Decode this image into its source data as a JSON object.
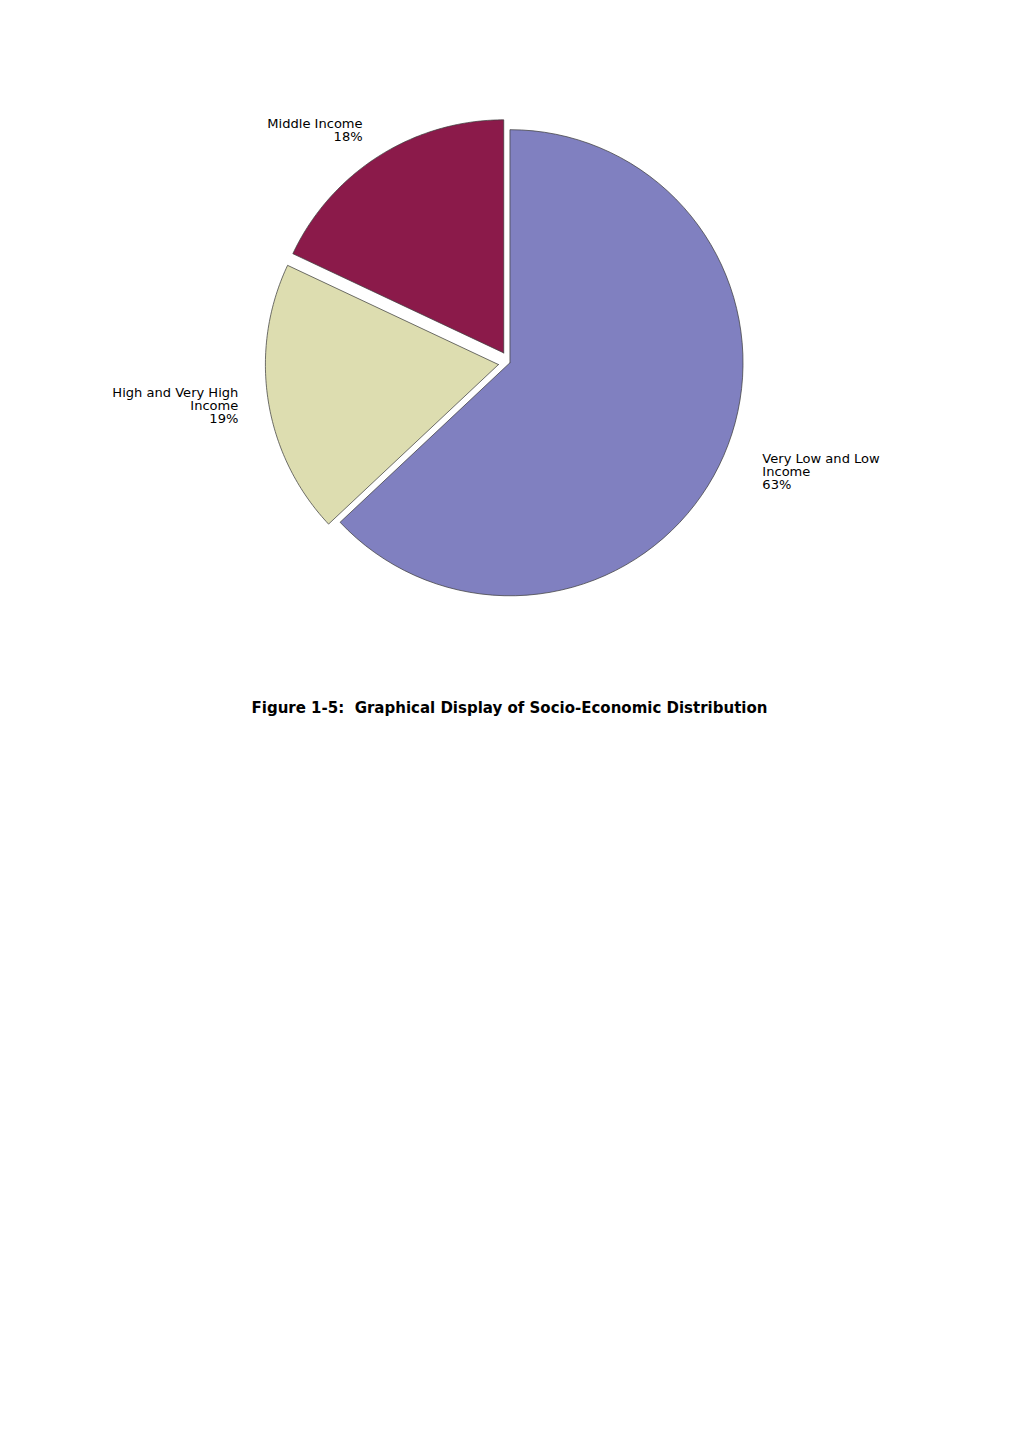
{
  "chart_data": {
    "type": "pie",
    "title": "Figure 1-5:  Graphical Display of Socio-Economic Distribution",
    "categories": [
      "Very Low and Low Income",
      "High and Very High Income",
      "Middle Income"
    ],
    "values": [
      63,
      19,
      18
    ],
    "value_labels": [
      "63%",
      "19%",
      "18%"
    ],
    "colors": [
      "#8080c0",
      "#ddddb0",
      "#8b1a4a"
    ],
    "data_labels": true
  }
}
